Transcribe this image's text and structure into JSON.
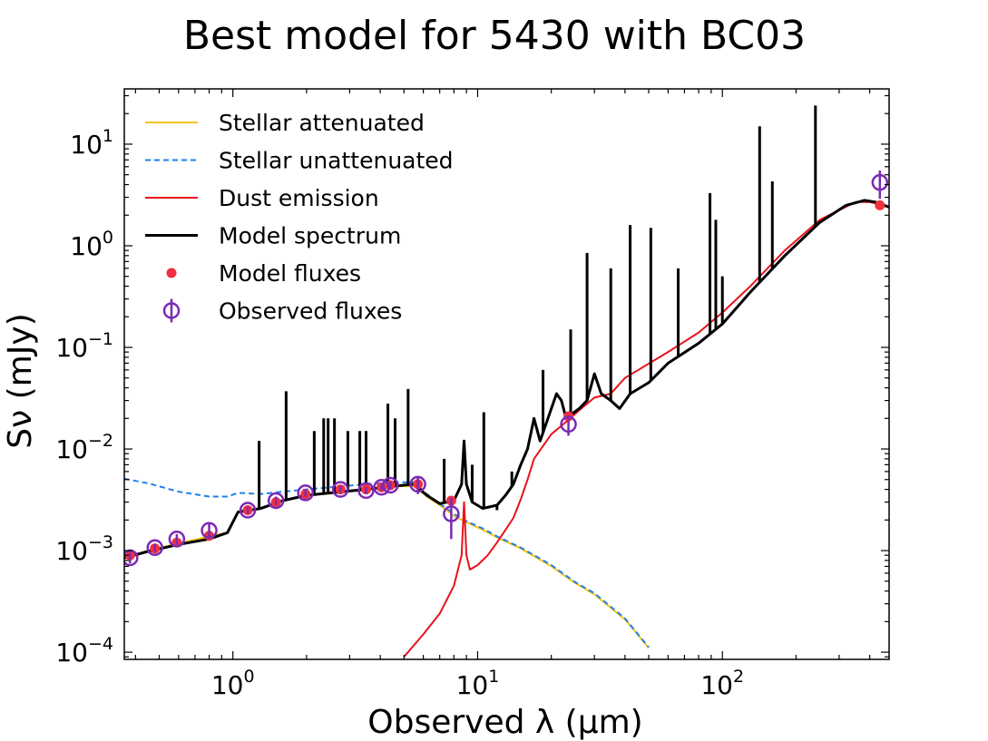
{
  "chart_data": {
    "type": "line",
    "title": "Best model for 5430 with BC03",
    "xlabel": "Observed λ (μm)",
    "ylabel": "Sν (mJy)",
    "xscale": "log",
    "yscale": "log",
    "xlim": [
      0.36,
      480
    ],
    "ylim": [
      8.5e-05,
      35
    ],
    "x_ticks": [
      {
        "value": 1,
        "base": "10",
        "exp": "0"
      },
      {
        "value": 10,
        "base": "10",
        "exp": "1"
      },
      {
        "value": 100,
        "base": "10",
        "exp": "2"
      }
    ],
    "y_ticks": [
      {
        "value": 0.0001,
        "base": "10",
        "exp": "−4"
      },
      {
        "value": 0.001,
        "base": "10",
        "exp": "−3"
      },
      {
        "value": 0.01,
        "base": "10",
        "exp": "−2"
      },
      {
        "value": 0.1,
        "base": "10",
        "exp": "−1"
      },
      {
        "value": 1,
        "base": "10",
        "exp": "0"
      },
      {
        "value": 10,
        "base": "10",
        "exp": "1"
      }
    ],
    "legend_position": "upper-left",
    "legend": [
      {
        "label": "Stellar attenuated",
        "style": "yellow-line"
      },
      {
        "label": "Stellar unattenuated",
        "style": "blue-dash"
      },
      {
        "label": "Dust emission",
        "style": "red-line"
      },
      {
        "label": "Model spectrum",
        "style": "black-line"
      },
      {
        "label": "Model fluxes",
        "style": "red-dot"
      },
      {
        "label": "Observed fluxes",
        "style": "purple-circle"
      }
    ],
    "colors": {
      "stellar_attenuated": "#f5c518",
      "stellar_unattenuated": "#1e7ff0",
      "dust_emission": "#e8121b",
      "model_spectrum": "#000000",
      "model_fluxes": "#f03040",
      "observed_fluxes": "#7b2ab5"
    },
    "series": [
      {
        "name": "Stellar attenuated",
        "points": [
          [
            0.36,
            0.00085
          ],
          [
            0.45,
            0.001
          ],
          [
            0.6,
            0.00118
          ],
          [
            0.8,
            0.00138
          ],
          [
            0.95,
            0.0015
          ],
          [
            1.05,
            0.0024
          ],
          [
            1.3,
            0.0026
          ],
          [
            1.6,
            0.0031
          ],
          [
            2.0,
            0.0035
          ],
          [
            2.8,
            0.0038
          ],
          [
            3.5,
            0.004
          ],
          [
            4.5,
            0.0043
          ],
          [
            5.5,
            0.0043
          ],
          [
            6.2,
            0.0034
          ],
          [
            7.0,
            0.0028
          ],
          [
            8.0,
            0.0022
          ],
          [
            9.0,
            0.0019
          ],
          [
            10.5,
            0.0016
          ],
          [
            12,
            0.00135
          ],
          [
            15,
            0.00105
          ],
          [
            20,
            0.0007
          ],
          [
            25,
            0.00048
          ],
          [
            30,
            0.00037
          ],
          [
            40,
            0.00021
          ],
          [
            50,
            0.00011
          ]
        ]
      },
      {
        "name": "Stellar unattenuated",
        "points": [
          [
            0.36,
            0.0051
          ],
          [
            0.45,
            0.0046
          ],
          [
            0.6,
            0.0038
          ],
          [
            0.8,
            0.0034
          ],
          [
            0.95,
            0.0034
          ],
          [
            1.05,
            0.0037
          ],
          [
            1.3,
            0.0036
          ],
          [
            1.6,
            0.0038
          ],
          [
            2.0,
            0.004
          ],
          [
            2.8,
            0.0043
          ],
          [
            3.5,
            0.0045
          ],
          [
            4.5,
            0.0047
          ],
          [
            5.5,
            0.0047
          ],
          [
            6.2,
            0.0036
          ],
          [
            7.0,
            0.0029
          ],
          [
            8.0,
            0.0023
          ],
          [
            9.0,
            0.00195
          ],
          [
            10.5,
            0.00165
          ],
          [
            12,
            0.00138
          ],
          [
            15,
            0.00107
          ],
          [
            20,
            0.00072
          ],
          [
            25,
            0.00049
          ],
          [
            30,
            0.00038
          ],
          [
            40,
            0.000215
          ],
          [
            50,
            0.000112
          ]
        ]
      },
      {
        "name": "Dust emission",
        "points": [
          [
            5.0,
            9e-05
          ],
          [
            6.0,
            0.00015
          ],
          [
            7.0,
            0.00024
          ],
          [
            8.0,
            0.00045
          ],
          [
            8.6,
            0.0009
          ],
          [
            8.8,
            0.003
          ],
          [
            9.0,
            0.0009
          ],
          [
            9.3,
            0.00065
          ],
          [
            10,
            0.00072
          ],
          [
            11,
            0.0009
          ],
          [
            12,
            0.0012
          ],
          [
            13,
            0.0016
          ],
          [
            14,
            0.0021
          ],
          [
            15,
            0.0032
          ],
          [
            16,
            0.005
          ],
          [
            17,
            0.008
          ],
          [
            20,
            0.014
          ],
          [
            23,
            0.0185
          ],
          [
            26,
            0.024
          ],
          [
            30,
            0.032
          ],
          [
            35,
            0.035
          ],
          [
            40,
            0.05
          ],
          [
            60,
            0.09
          ],
          [
            80,
            0.14
          ],
          [
            100,
            0.22
          ],
          [
            130,
            0.4
          ],
          [
            180,
            0.9
          ],
          [
            250,
            1.8
          ],
          [
            350,
            2.7
          ],
          [
            400,
            2.7
          ],
          [
            480,
            2.4
          ]
        ]
      },
      {
        "name": "Model spectrum",
        "points": [
          [
            0.36,
            0.00085
          ],
          [
            0.45,
            0.00098
          ],
          [
            0.6,
            0.00115
          ],
          [
            0.8,
            0.0013
          ],
          [
            0.95,
            0.0015
          ],
          [
            1.05,
            0.0024
          ],
          [
            1.3,
            0.0026
          ],
          [
            1.6,
            0.0031
          ],
          [
            2.0,
            0.0035
          ],
          [
            2.8,
            0.0038
          ],
          [
            3.5,
            0.004
          ],
          [
            4.5,
            0.0043
          ],
          [
            5.5,
            0.0045
          ],
          [
            6.2,
            0.0035
          ],
          [
            7.0,
            0.0029
          ],
          [
            8.0,
            0.0031
          ],
          [
            8.6,
            0.0045
          ],
          [
            8.8,
            0.012
          ],
          [
            9.0,
            0.0045
          ],
          [
            9.5,
            0.003
          ],
          [
            10.5,
            0.0026
          ],
          [
            12,
            0.0028
          ],
          [
            13,
            0.0035
          ],
          [
            14,
            0.0045
          ],
          [
            15,
            0.007
          ],
          [
            16,
            0.01
          ],
          [
            17,
            0.02
          ],
          [
            18,
            0.012
          ],
          [
            20,
            0.025
          ],
          [
            21,
            0.035
          ],
          [
            22,
            0.03
          ],
          [
            23,
            0.02
          ],
          [
            26,
            0.025
          ],
          [
            28,
            0.03
          ],
          [
            30,
            0.055
          ],
          [
            32,
            0.035
          ],
          [
            35,
            0.03
          ],
          [
            38,
            0.025
          ],
          [
            42,
            0.035
          ],
          [
            50,
            0.045
          ],
          [
            60,
            0.07
          ],
          [
            80,
            0.11
          ],
          [
            100,
            0.17
          ],
          [
            130,
            0.35
          ],
          [
            180,
            0.8
          ],
          [
            250,
            1.7
          ],
          [
            320,
            2.5
          ],
          [
            380,
            2.8
          ],
          [
            420,
            2.7
          ],
          [
            480,
            2.4
          ]
        ]
      }
    ],
    "emission_lines": [
      [
        1.28,
        0.012
      ],
      [
        1.65,
        0.037
      ],
      [
        2.15,
        0.015
      ],
      [
        2.35,
        0.02
      ],
      [
        2.45,
        0.02
      ],
      [
        2.6,
        0.02
      ],
      [
        2.95,
        0.015
      ],
      [
        3.3,
        0.015
      ],
      [
        3.5,
        0.015
      ],
      [
        4.3,
        0.028
      ],
      [
        4.6,
        0.02
      ],
      [
        5.2,
        0.039
      ],
      [
        7.3,
        0.008
      ],
      [
        9.5,
        0.007
      ],
      [
        10.6,
        0.023
      ],
      [
        12,
        0.0025
      ],
      [
        13.8,
        0.006
      ],
      [
        18.5,
        0.06
      ],
      [
        24,
        0.15
      ],
      [
        28,
        0.85
      ],
      [
        35,
        0.6
      ],
      [
        42,
        1.6
      ],
      [
        51,
        1.5
      ],
      [
        66,
        0.6
      ],
      [
        89,
        3.3
      ],
      [
        94,
        1.8
      ],
      [
        100,
        0.5
      ],
      [
        142,
        15
      ],
      [
        160,
        4.3
      ],
      [
        240,
        24
      ]
    ],
    "model_fluxes": [
      [
        0.38,
        0.0009
      ],
      [
        0.48,
        0.00105
      ],
      [
        0.59,
        0.0012
      ],
      [
        0.8,
        0.0014
      ],
      [
        1.15,
        0.0025
      ],
      [
        1.5,
        0.003
      ],
      [
        1.98,
        0.0036
      ],
      [
        2.75,
        0.004
      ],
      [
        3.5,
        0.004
      ],
      [
        4.05,
        0.0042
      ],
      [
        4.4,
        0.0044
      ],
      [
        5.7,
        0.0045
      ],
      [
        7.8,
        0.0031
      ],
      [
        23.5,
        0.021
      ],
      [
        440,
        2.5
      ]
    ],
    "observed_fluxes": [
      {
        "x": 0.38,
        "y": 0.00085,
        "err": 0.0001
      },
      {
        "x": 0.48,
        "y": 0.00107,
        "err": 0.0001
      },
      {
        "x": 0.59,
        "y": 0.0013,
        "err": 0.00015
      },
      {
        "x": 0.8,
        "y": 0.00158,
        "err": 0.00025
      },
      {
        "x": 1.15,
        "y": 0.0025,
        "err": 0.0002
      },
      {
        "x": 1.5,
        "y": 0.0031,
        "err": 0.0003
      },
      {
        "x": 1.98,
        "y": 0.0037,
        "err": 0.0003
      },
      {
        "x": 2.75,
        "y": 0.004,
        "err": 0.0003
      },
      {
        "x": 3.5,
        "y": 0.0039,
        "err": 0.0003
      },
      {
        "x": 4.05,
        "y": 0.0042,
        "err": 0.0003
      },
      {
        "x": 4.4,
        "y": 0.0044,
        "err": 0.0004
      },
      {
        "x": 5.7,
        "y": 0.0045,
        "err": 0.0009
      },
      {
        "x": 7.8,
        "y": 0.0023,
        "err": 0.001
      },
      {
        "x": 23.5,
        "y": 0.0175,
        "err": 0.004
      },
      {
        "x": 440,
        "y": 4.2,
        "err": 1.3
      }
    ]
  }
}
